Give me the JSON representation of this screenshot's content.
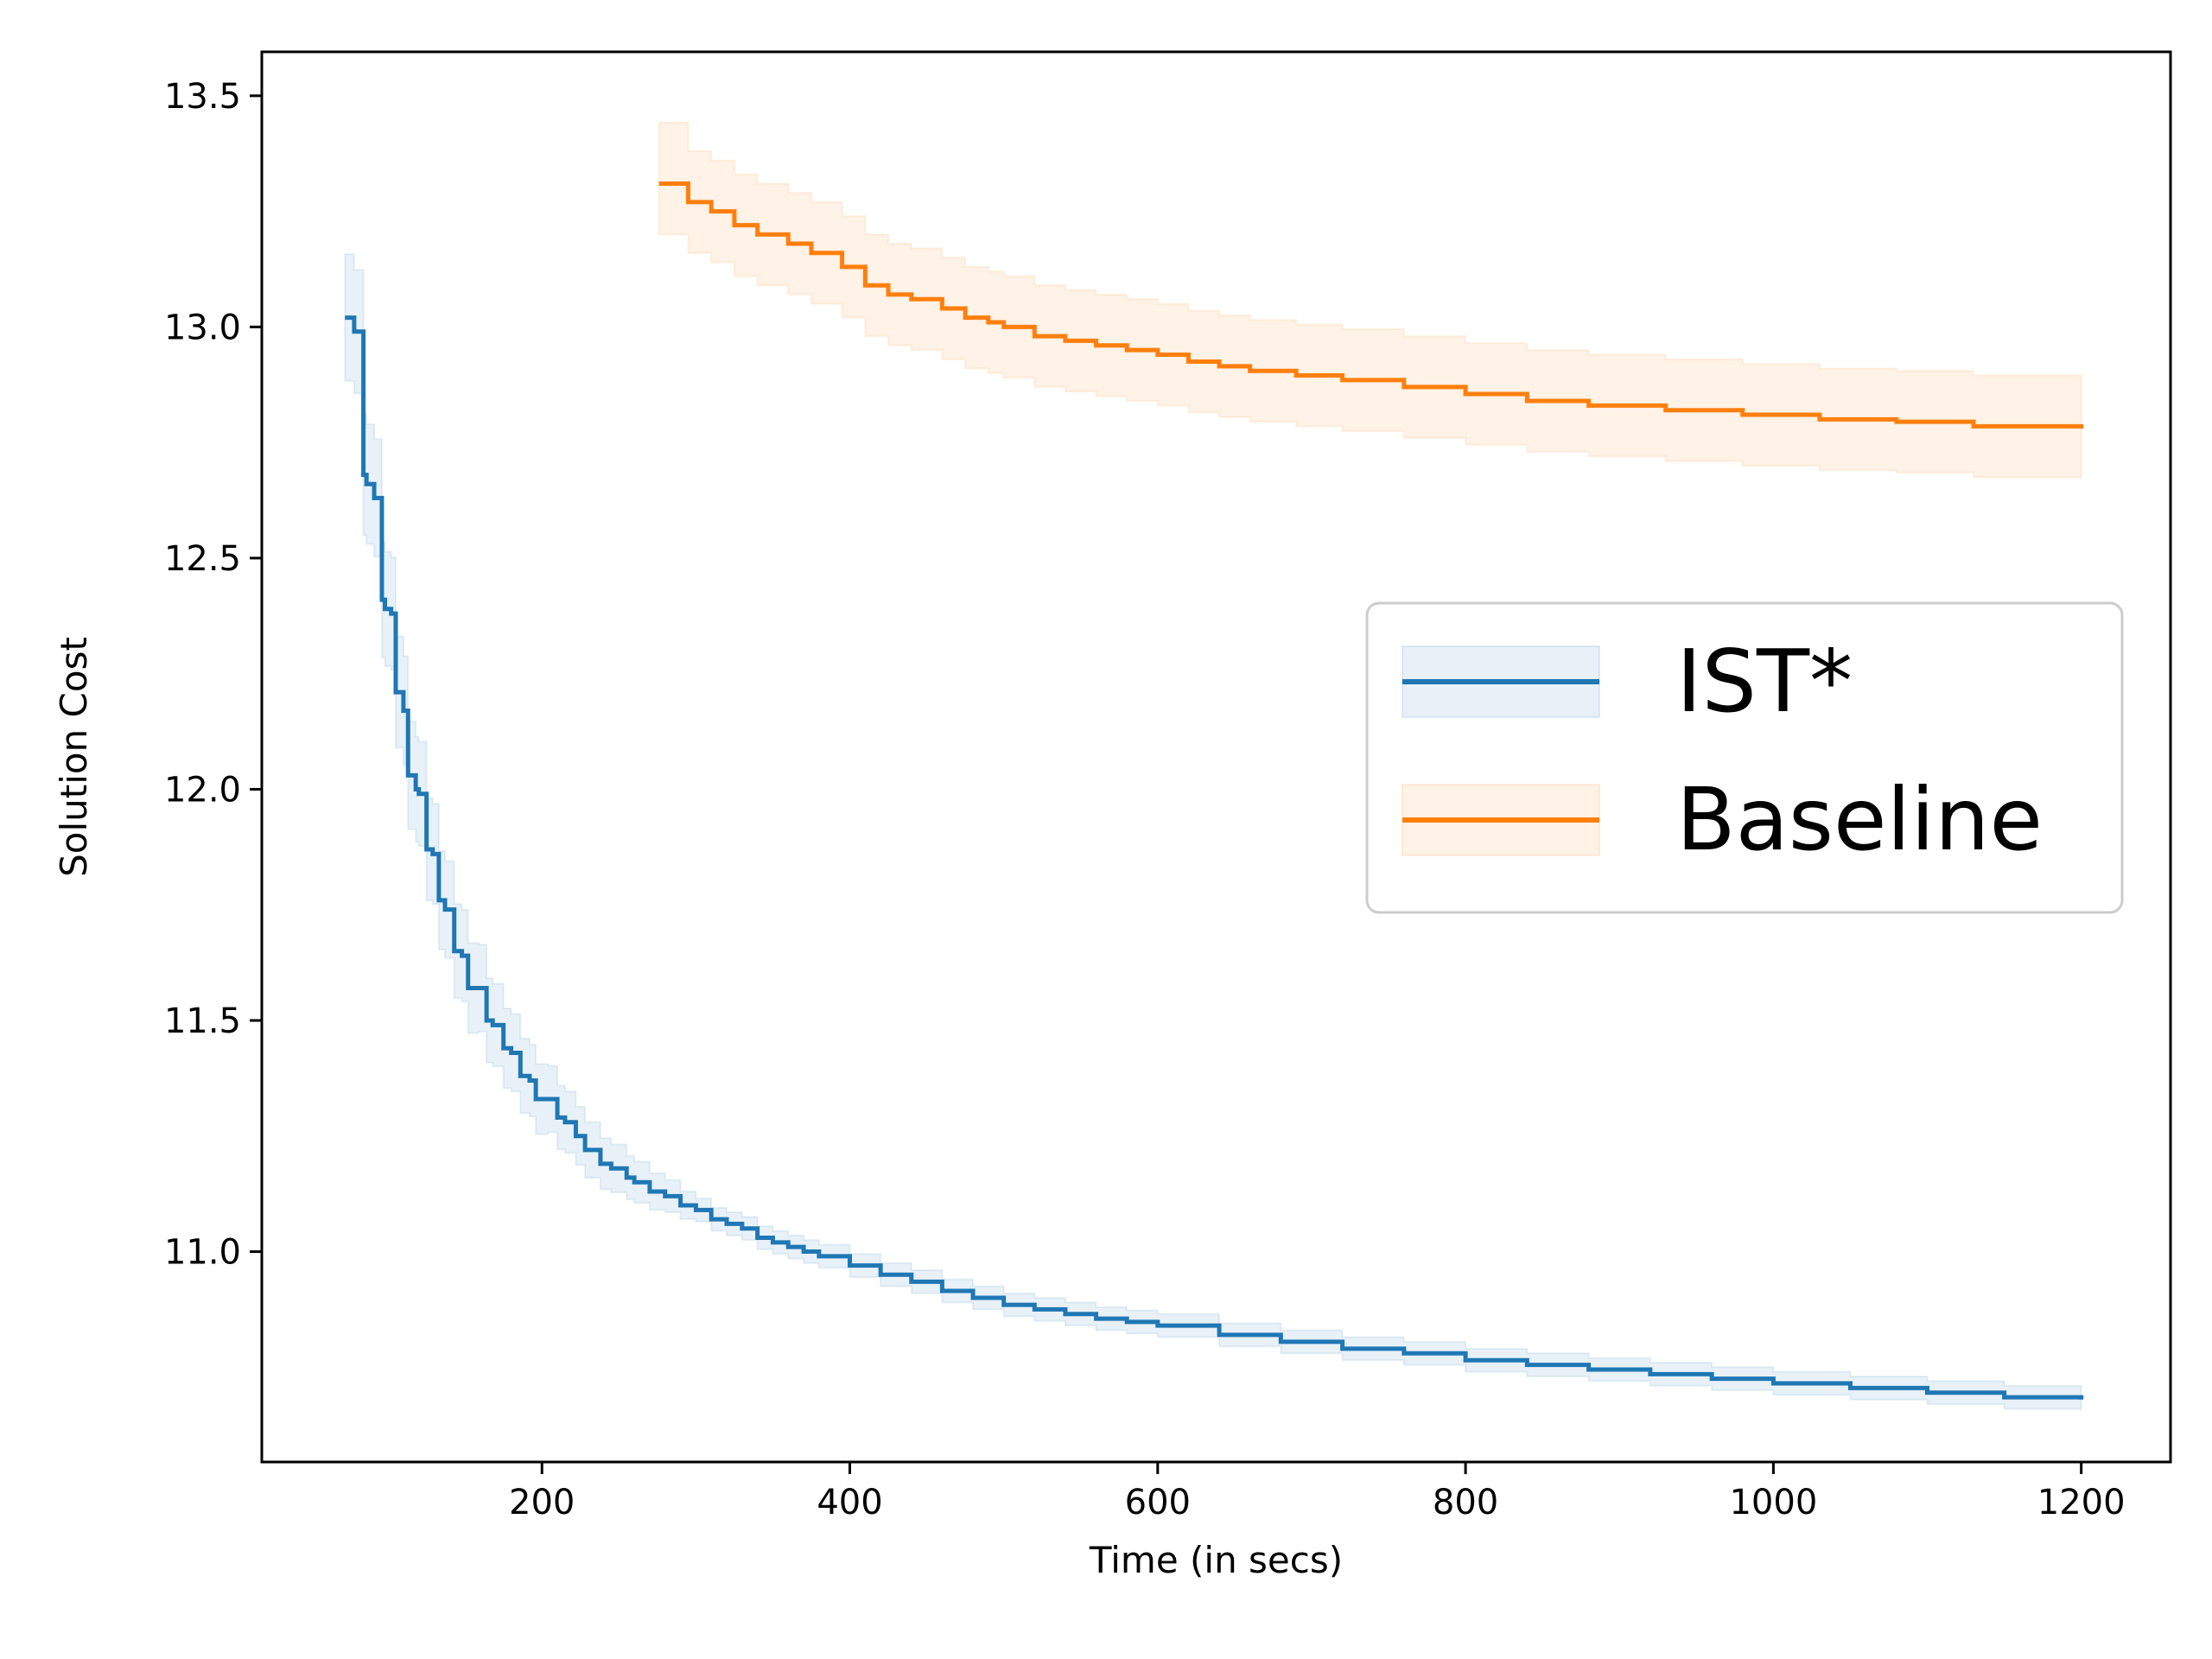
{
  "chart_data": {
    "type": "line",
    "title": "",
    "xlabel": "Time (in secs)",
    "ylabel": "Solution Cost",
    "xlim": [
      18,
      1258
    ],
    "ylim": [
      10.545,
      13.595
    ],
    "xticks": [
      200,
      400,
      600,
      800,
      1000,
      1200
    ],
    "yticks": [
      11.0,
      11.5,
      12.0,
      12.5,
      13.0,
      13.5
    ],
    "xtick_labels": [
      "200",
      "400",
      "600",
      "800",
      "1000",
      "1200"
    ],
    "ytick_labels": [
      "11.0",
      "11.5",
      "12.0",
      "12.5",
      "13.0",
      "13.5"
    ],
    "grid": false,
    "legend_position": "center-right",
    "series": [
      {
        "name": "IST*",
        "color": "#1f77b4",
        "band_spread": 0.025,
        "x": [
          72,
          78,
          84,
          86,
          91,
          96,
          98,
          102,
          105,
          110,
          113,
          118,
          120,
          125,
          129,
          133,
          137,
          143,
          148,
          152,
          159,
          164,
          168,
          175,
          180,
          186,
          192,
          196,
          204,
          210,
          215,
          222,
          228,
          238,
          245,
          255,
          260,
          270,
          280,
          290,
          300,
          310,
          320,
          330,
          340,
          350,
          360,
          370,
          380,
          400,
          420,
          440,
          460,
          480,
          500,
          520,
          540,
          560,
          580,
          600,
          640,
          680,
          720,
          760,
          800,
          840,
          880,
          920,
          960,
          1000,
          1050,
          1100,
          1150,
          1200
        ],
        "y": [
          13.02,
          12.99,
          12.68,
          12.66,
          12.63,
          12.41,
          12.39,
          12.38,
          12.21,
          12.17,
          12.03,
          12.0,
          11.99,
          11.87,
          11.86,
          11.76,
          11.74,
          11.65,
          11.64,
          11.57,
          11.57,
          11.5,
          11.49,
          11.44,
          11.43,
          11.38,
          11.37,
          11.33,
          11.33,
          11.29,
          11.28,
          11.25,
          11.22,
          11.19,
          11.18,
          11.16,
          11.15,
          11.13,
          11.12,
          11.1,
          11.09,
          11.07,
          11.06,
          11.05,
          11.03,
          11.02,
          11.01,
          11.0,
          10.99,
          10.97,
          10.95,
          10.935,
          10.915,
          10.9,
          10.885,
          10.875,
          10.865,
          10.855,
          10.848,
          10.84,
          10.82,
          10.805,
          10.79,
          10.78,
          10.765,
          10.755,
          10.745,
          10.735,
          10.725,
          10.715,
          10.705,
          10.695,
          10.685,
          10.68
        ]
      },
      {
        "name": "Baseline",
        "color": "#ff7f0e",
        "band_spread": 0.11,
        "x": [
          276,
          295,
          310,
          325,
          340,
          360,
          375,
          395,
          410,
          425,
          440,
          460,
          475,
          490,
          500,
          520,
          540,
          560,
          580,
          600,
          620,
          640,
          660,
          690,
          720,
          760,
          800,
          840,
          880,
          930,
          980,
          1030,
          1080,
          1130,
          1200
        ],
        "y": [
          13.31,
          13.27,
          13.25,
          13.22,
          13.2,
          13.18,
          13.16,
          13.13,
          13.09,
          13.07,
          13.06,
          13.04,
          13.02,
          13.01,
          13.0,
          12.98,
          12.97,
          12.96,
          12.95,
          12.94,
          12.925,
          12.915,
          12.905,
          12.895,
          12.885,
          12.87,
          12.855,
          12.84,
          12.83,
          12.82,
          12.81,
          12.8,
          12.795,
          12.785,
          12.78
        ]
      }
    ]
  }
}
